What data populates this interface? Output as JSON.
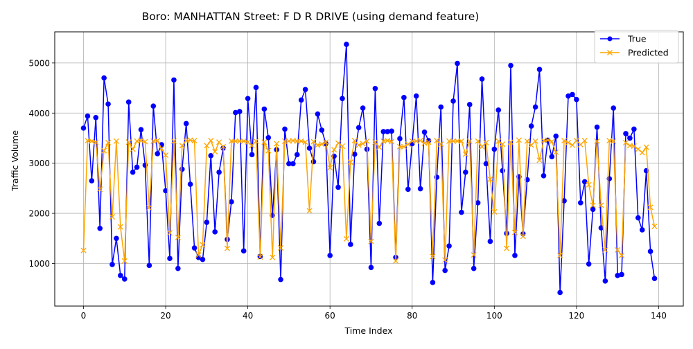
{
  "chart_data": {
    "type": "line",
    "title": "Boro: MANHATTAN Street: F D R DRIVE (using demand feature)",
    "xlabel": "Time Index",
    "ylabel": "Traffic Volume",
    "xlim": [
      -7,
      146
    ],
    "ylim": [
      150,
      5620
    ],
    "xticks": [
      0,
      20,
      40,
      60,
      80,
      100,
      120,
      140
    ],
    "yticks": [
      1000,
      2000,
      3000,
      4000,
      5000
    ],
    "grid": true,
    "legend_position": "top-right",
    "x": [
      0,
      1,
      2,
      3,
      4,
      5,
      6,
      7,
      8,
      9,
      10,
      11,
      12,
      13,
      14,
      15,
      16,
      17,
      18,
      19,
      20,
      21,
      22,
      23,
      24,
      25,
      26,
      27,
      28,
      29,
      30,
      31,
      32,
      33,
      34,
      35,
      36,
      37,
      38,
      39,
      40,
      41,
      42,
      43,
      44,
      45,
      46,
      47,
      48,
      49,
      50,
      51,
      52,
      53,
      54,
      55,
      56,
      57,
      58,
      59,
      60,
      61,
      62,
      63,
      64,
      65,
      66,
      67,
      68,
      69,
      70,
      71,
      72,
      73,
      74,
      75,
      76,
      77,
      78,
      79,
      80,
      81,
      82,
      83,
      84,
      85,
      86,
      87,
      88,
      89,
      90,
      91,
      92,
      93,
      94,
      95,
      96,
      97,
      98,
      99,
      100,
      101,
      102,
      103,
      104,
      105,
      106,
      107,
      108,
      109,
      110,
      111,
      112,
      113,
      114,
      115,
      116,
      117,
      118,
      119,
      120,
      121,
      122,
      123,
      124,
      125,
      126,
      127,
      128,
      129,
      130,
      131,
      132,
      133,
      134,
      135,
      136,
      137,
      138,
      139
    ],
    "series": [
      {
        "name": "True",
        "color": "#0000ff",
        "marker": "circle",
        "values": [
          3700,
          3940,
          2650,
          3910,
          1700,
          4700,
          4180,
          980,
          1500,
          760,
          690,
          4220,
          2820,
          2920,
          3670,
          2960,
          960,
          4140,
          3190,
          3370,
          2450,
          1100,
          4660,
          900,
          2880,
          3790,
          2580,
          1310,
          1120,
          1080,
          1820,
          3150,
          1630,
          2820,
          3300,
          1480,
          2230,
          4010,
          4030,
          1250,
          4290,
          3170,
          4510,
          1140,
          4080,
          3510,
          1960,
          3270,
          680,
          3680,
          2990,
          2990,
          3170,
          4260,
          4470,
          3300,
          3030,
          3980,
          3660,
          3390,
          1160,
          3140,
          2520,
          4290,
          5370,
          1380,
          3180,
          3710,
          4100,
          3280,
          920,
          4490,
          1800,
          3630,
          3630,
          3640,
          1120,
          3490,
          4310,
          2480,
          3390,
          4340,
          2490,
          3620,
          3450,
          620,
          2720,
          4120,
          860,
          1350,
          4240,
          4990,
          2020,
          2820,
          4170,
          900,
          2210,
          4680,
          2990,
          1440,
          3280,
          4060,
          2850,
          1600,
          4950,
          1160,
          2730,
          1590,
          2670,
          3740,
          4120,
          4870,
          2750,
          3460,
          3130,
          3540,
          420,
          2250,
          4340,
          4370,
          4270,
          2210,
          2630,
          990,
          2080,
          3720,
          1710,
          650,
          2690,
          4100,
          760,
          780,
          3590,
          3500,
          3680,
          1910,
          1670,
          2850,
          1240,
          700
        ]
      },
      {
        "name": "Predicted",
        "color": "#ffa500",
        "marker": "x",
        "values": [
          1260,
          3450,
          3440,
          3420,
          2480,
          3250,
          3410,
          1930,
          3440,
          1730,
          1050,
          3420,
          3280,
          3440,
          3450,
          3430,
          2110,
          3440,
          3450,
          3290,
          3160,
          1610,
          3440,
          1520,
          3350,
          3450,
          3460,
          3450,
          1170,
          1370,
          3350,
          3450,
          3230,
          3420,
          3330,
          1300,
          3440,
          3440,
          3440,
          3440,
          3420,
          3350,
          3440,
          1130,
          3420,
          3250,
          1120,
          3390,
          1310,
          3440,
          3440,
          3450,
          3440,
          3440,
          3420,
          2050,
          3430,
          3360,
          3380,
          3420,
          2910,
          3270,
          3400,
          3340,
          1490,
          3020,
          3450,
          3360,
          3390,
          3440,
          1440,
          3420,
          3320,
          3440,
          3450,
          3430,
          1050,
          3330,
          3330,
          3380,
          3440,
          3440,
          3450,
          3400,
          3420,
          1140,
          3450,
          3380,
          1070,
          3440,
          3440,
          3440,
          3440,
          3180,
          3440,
          1170,
          3440,
          3330,
          3410,
          2680,
          2030,
          3440,
          3380,
          1300,
          3420,
          1620,
          3460,
          1540,
          3440,
          3360,
          3440,
          3060,
          3450,
          3460,
          3430,
          3220,
          1160,
          3450,
          3410,
          3360,
          3450,
          3370,
          3450,
          2570,
          2160,
          3440,
          2160,
          1270,
          3450,
          3440,
          1270,
          1160,
          3410,
          3350,
          3340,
          3280,
          3210,
          3320,
          2120,
          1740
        ]
      }
    ]
  }
}
